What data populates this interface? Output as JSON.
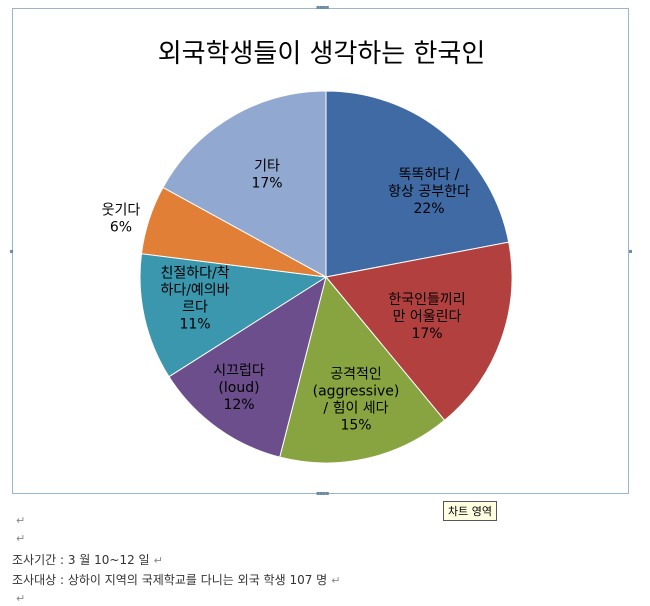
{
  "chart_data": {
    "type": "pie",
    "title": "외국학생들이 생각하는 한국인",
    "slices": [
      {
        "label_lines": [
          "똑똑하다 /",
          "항상 공부한다"
        ],
        "value": 22,
        "value_label": "22%",
        "color": "#3f6aa4"
      },
      {
        "label_lines": [
          "한국인들끼리",
          "만 어울린다"
        ],
        "value": 17,
        "value_label": "17%",
        "color": "#b2403f"
      },
      {
        "label_lines": [
          "공격적인",
          "(aggressive)",
          "/ 힘이 세다"
        ],
        "value": 15,
        "value_label": "15%",
        "color": "#87a441"
      },
      {
        "label_lines": [
          "시끄럽다",
          "(loud)"
        ],
        "value": 12,
        "value_label": "12%",
        "color": "#6c4e8c"
      },
      {
        "label_lines": [
          "친절하다/착",
          "하다/예의바",
          "르다"
        ],
        "value": 11,
        "value_label": "11%",
        "color": "#3a97ad"
      },
      {
        "label_lines": [
          "웃기다"
        ],
        "value": 6,
        "value_label": "6%",
        "color": "#e07f35"
      },
      {
        "label_lines": [
          "기타"
        ],
        "value": 17,
        "value_label": "17%",
        "color": "#91a8d0"
      }
    ],
    "start_angle_deg": 0,
    "direction": "clockwise",
    "legend": "none"
  },
  "tooltip": {
    "text": "차트 영역"
  },
  "document": {
    "survey_period": "조사기간 : 3 월 10~12 일",
    "survey_target": "조사대상 : 상하이 지역의 국제학교를 다니는 외국 학생 107 명"
  }
}
